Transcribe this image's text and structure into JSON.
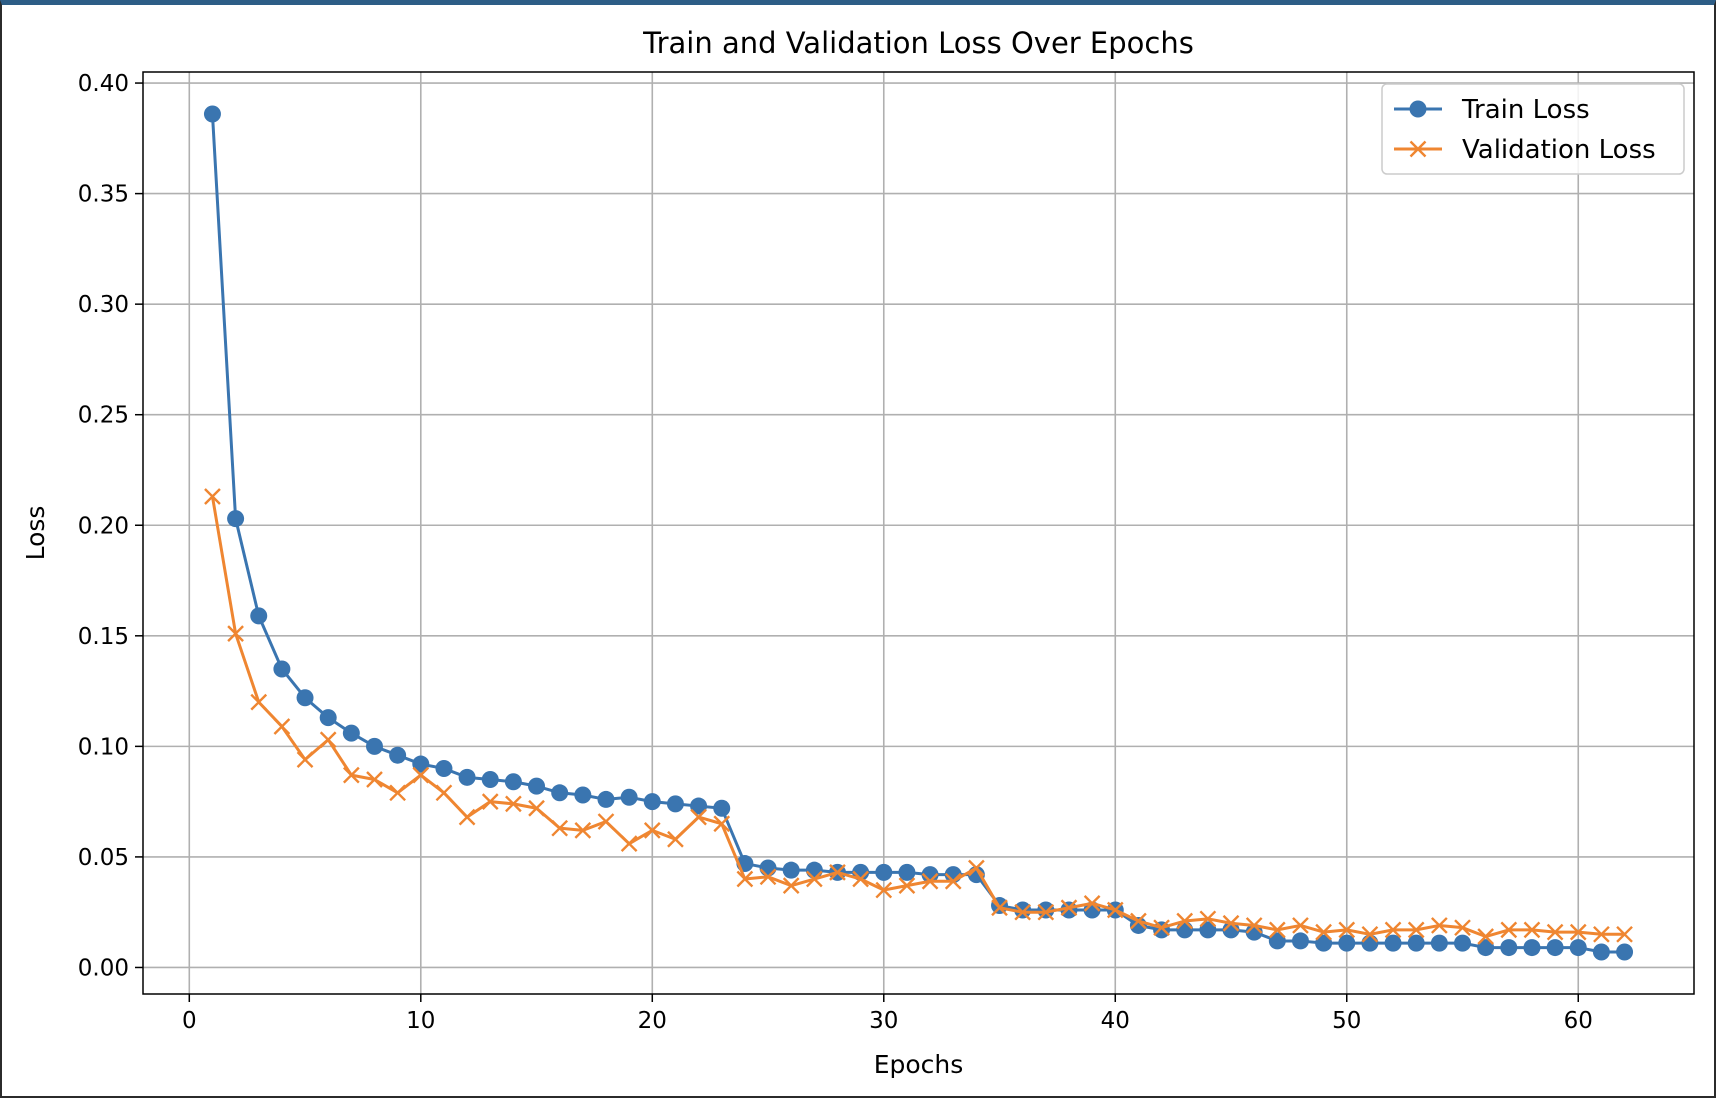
{
  "chart_data": {
    "type": "line",
    "title": "Train and Validation Loss Over Epochs",
    "xlabel": "Epochs",
    "ylabel": "Loss",
    "xlim": [
      -2,
      65
    ],
    "ylim": [
      -0.012,
      0.405
    ],
    "xticks": [
      0,
      10,
      20,
      30,
      40,
      50,
      60
    ],
    "yticks": [
      0.0,
      0.05,
      0.1,
      0.15,
      0.2,
      0.25,
      0.3,
      0.35,
      0.4
    ],
    "xtick_labels": [
      "0",
      "10",
      "20",
      "30",
      "40",
      "50",
      "60"
    ],
    "ytick_labels": [
      "0.00",
      "0.05",
      "0.10",
      "0.15",
      "0.20",
      "0.25",
      "0.30",
      "0.35",
      "0.40"
    ],
    "grid": true,
    "legend_position": "top-right",
    "series": [
      {
        "name": "Train Loss",
        "marker": "circle",
        "color": "#3a75b0",
        "x": [
          1,
          2,
          3,
          4,
          5,
          6,
          7,
          8,
          9,
          10,
          11,
          12,
          13,
          14,
          15,
          16,
          17,
          18,
          19,
          20,
          21,
          22,
          23,
          24,
          25,
          26,
          27,
          28,
          29,
          30,
          31,
          32,
          33,
          34,
          35,
          36,
          37,
          38,
          39,
          40,
          41,
          42,
          43,
          44,
          45,
          46,
          47,
          48,
          49,
          50,
          51,
          52,
          53,
          54,
          55,
          56,
          57,
          58,
          59,
          60,
          61,
          62
        ],
        "values": [
          0.386,
          0.203,
          0.159,
          0.135,
          0.122,
          0.113,
          0.106,
          0.1,
          0.096,
          0.092,
          0.09,
          0.086,
          0.085,
          0.084,
          0.082,
          0.079,
          0.078,
          0.076,
          0.077,
          0.075,
          0.074,
          0.073,
          0.072,
          0.047,
          0.045,
          0.044,
          0.044,
          0.043,
          0.043,
          0.043,
          0.043,
          0.042,
          0.042,
          0.042,
          0.028,
          0.026,
          0.026,
          0.026,
          0.026,
          0.026,
          0.019,
          0.017,
          0.017,
          0.017,
          0.017,
          0.016,
          0.012,
          0.012,
          0.011,
          0.011,
          0.011,
          0.011,
          0.011,
          0.011,
          0.011,
          0.009,
          0.009,
          0.009,
          0.009,
          0.009,
          0.007,
          0.007
        ]
      },
      {
        "name": "Validation Loss",
        "marker": "x",
        "color": "#ef8631",
        "x": [
          1,
          2,
          3,
          4,
          5,
          6,
          7,
          8,
          9,
          10,
          11,
          12,
          13,
          14,
          15,
          16,
          17,
          18,
          19,
          20,
          21,
          22,
          23,
          24,
          25,
          26,
          27,
          28,
          29,
          30,
          31,
          32,
          33,
          34,
          35,
          36,
          37,
          38,
          39,
          40,
          41,
          42,
          43,
          44,
          45,
          46,
          47,
          48,
          49,
          50,
          51,
          52,
          53,
          54,
          55,
          56,
          57,
          58,
          59,
          60,
          61,
          62
        ],
        "values": [
          0.213,
          0.151,
          0.12,
          0.109,
          0.094,
          0.103,
          0.087,
          0.085,
          0.079,
          0.087,
          0.079,
          0.068,
          0.075,
          0.074,
          0.072,
          0.063,
          0.062,
          0.066,
          0.056,
          0.062,
          0.058,
          0.068,
          0.065,
          0.04,
          0.041,
          0.037,
          0.04,
          0.043,
          0.04,
          0.035,
          0.037,
          0.039,
          0.039,
          0.045,
          0.027,
          0.025,
          0.025,
          0.027,
          0.029,
          0.026,
          0.021,
          0.018,
          0.021,
          0.022,
          0.02,
          0.019,
          0.017,
          0.019,
          0.016,
          0.017,
          0.015,
          0.017,
          0.017,
          0.019,
          0.018,
          0.014,
          0.017,
          0.017,
          0.016,
          0.016,
          0.015,
          0.015
        ]
      }
    ]
  }
}
